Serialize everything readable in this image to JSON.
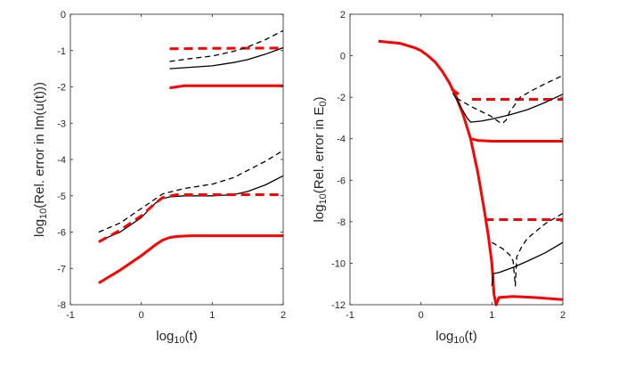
{
  "chart_data": [
    {
      "type": "line",
      "xlabel_parts": [
        "log",
        "10",
        "(t)"
      ],
      "ylabel_parts": [
        "log",
        "10",
        "(Rel. error in Im(u(t)))"
      ],
      "xlim": [
        -1,
        2
      ],
      "ylim": [
        -8,
        0
      ],
      "xticks": [
        -1,
        0,
        1,
        2
      ],
      "yticks": [
        -8,
        -7,
        -6,
        -5,
        -4,
        -3,
        -2,
        -1,
        0
      ],
      "grid": false,
      "series": [
        {
          "color": "#ff0000",
          "style": "dashed",
          "width": "thick",
          "x": [
            0.4,
            1.0,
            2.0
          ],
          "y": [
            -0.95,
            -0.94,
            -0.93
          ]
        },
        {
          "color": "#000000",
          "style": "dashed",
          "width": "thin",
          "x": [
            0.4,
            0.7,
            1.0,
            1.3,
            1.5,
            1.75,
            2.0
          ],
          "y": [
            -1.3,
            -1.22,
            -1.15,
            -1.02,
            -0.9,
            -0.7,
            -0.45
          ]
        },
        {
          "color": "#000000",
          "style": "solid",
          "width": "thin",
          "x": [
            0.4,
            0.7,
            1.0,
            1.3,
            1.5,
            1.75,
            2.0
          ],
          "y": [
            -1.5,
            -1.46,
            -1.42,
            -1.33,
            -1.25,
            -1.1,
            -0.92
          ]
        },
        {
          "color": "#ff0000",
          "style": "solid",
          "width": "thick",
          "x": [
            0.4,
            0.5,
            0.6,
            1.0,
            2.0
          ],
          "y": [
            -2.03,
            -2.0,
            -1.97,
            -1.97,
            -1.97
          ]
        },
        {
          "color": "#000000",
          "style": "dashed",
          "width": "thin",
          "x": [
            -0.6,
            -0.3,
            0.0,
            0.3,
            0.6,
            1.0,
            1.3,
            1.5,
            1.75,
            2.0
          ],
          "y": [
            -6.0,
            -5.75,
            -5.35,
            -4.95,
            -4.8,
            -4.68,
            -4.5,
            -4.3,
            -4.05,
            -3.75
          ]
        },
        {
          "color": "#000000",
          "style": "solid",
          "width": "thin",
          "x": [
            -0.6,
            -0.3,
            0.0,
            0.1,
            0.2,
            0.3,
            0.4,
            0.6,
            1.0,
            1.3,
            1.5,
            1.75,
            2.0
          ],
          "y": [
            -6.25,
            -6.0,
            -5.6,
            -5.4,
            -5.2,
            -5.08,
            -5.03,
            -5.0,
            -5.0,
            -4.97,
            -4.88,
            -4.7,
            -4.45
          ]
        },
        {
          "color": "#ff0000",
          "style": "dashed",
          "width": "thick",
          "x": [
            -0.6,
            -0.3,
            0.0,
            0.2,
            0.3,
            0.5,
            1.0,
            2.0
          ],
          "y": [
            -6.27,
            -5.95,
            -5.55,
            -5.2,
            -5.05,
            -4.97,
            -4.97,
            -4.97
          ]
        },
        {
          "color": "#ff0000",
          "style": "solid",
          "width": "thick",
          "x": [
            -0.6,
            -0.3,
            0.0,
            0.2,
            0.3,
            0.4,
            0.5,
            0.7,
            1.0,
            2.0
          ],
          "y": [
            -7.4,
            -7.05,
            -6.65,
            -6.35,
            -6.22,
            -6.15,
            -6.12,
            -6.1,
            -6.1,
            -6.1
          ]
        }
      ]
    },
    {
      "type": "line",
      "xlabel_parts": [
        "log",
        "10",
        "(t)"
      ],
      "ylabel_parts": [
        "log",
        "10",
        "(Rel. error in E",
        "0",
        ")"
      ],
      "xlim": [
        -1,
        2
      ],
      "ylim": [
        -12,
        2
      ],
      "xticks": [
        -1,
        0,
        1,
        2
      ],
      "yticks": [
        -12,
        -10,
        -8,
        -6,
        -4,
        -2,
        0,
        2
      ],
      "grid": false,
      "series": [
        {
          "color": "#ff0000",
          "style": "solid",
          "width": "thick",
          "x": [
            -0.6,
            -0.3,
            -0.1,
            0.0,
            0.1,
            0.2,
            0.3,
            0.4,
            0.5,
            0.6,
            0.7,
            0.8,
            0.9,
            0.95,
            1.0,
            1.03,
            1.06,
            1.1,
            1.3,
            1.6,
            2.0
          ],
          "y": [
            0.7,
            0.6,
            0.4,
            0.25,
            0.0,
            -0.3,
            -0.75,
            -1.3,
            -2.0,
            -2.9,
            -4.0,
            -5.6,
            -7.6,
            -8.7,
            -10.0,
            -11.5,
            -12.0,
            -11.65,
            -11.6,
            -11.65,
            -11.75
          ]
        },
        {
          "color": "#ff0000",
          "style": "solid",
          "width": "thick",
          "x": [
            0.7,
            0.8,
            1.0,
            1.5,
            2.0
          ],
          "y": [
            -4.0,
            -4.08,
            -4.12,
            -4.12,
            -4.12
          ]
        },
        {
          "color": "#ff0000",
          "style": "dashed",
          "width": "thick",
          "x": [
            0.43,
            0.55
          ],
          "y": [
            -1.6,
            -1.9
          ]
        },
        {
          "color": "#ff0000",
          "style": "dashed",
          "width": "thick",
          "x": [
            0.72,
            1.0,
            2.0
          ],
          "y": [
            -2.1,
            -2.1,
            -2.1
          ]
        },
        {
          "color": "#000000",
          "style": "solid",
          "width": "thin",
          "x": [
            0.45,
            0.55,
            0.65,
            0.7,
            0.85,
            1.0,
            1.25,
            1.5,
            1.75,
            2.0
          ],
          "y": [
            -1.8,
            -2.4,
            -3.0,
            -3.2,
            -3.15,
            -3.05,
            -2.85,
            -2.6,
            -2.25,
            -1.85
          ]
        },
        {
          "color": "#000000",
          "style": "dashed",
          "width": "thin",
          "x": [
            0.5,
            0.72,
            0.98,
            1.1,
            1.15,
            1.2,
            1.25,
            1.4,
            1.55,
            1.75,
            2.0
          ],
          "y": [
            -2.04,
            -2.47,
            -2.9,
            -3.19,
            -3.25,
            -3.1,
            -2.7,
            -2.0,
            -1.7,
            -1.35,
            -0.95
          ]
        },
        {
          "color": "#ff0000",
          "style": "dashed",
          "width": "thick",
          "x": [
            0.9,
            1.5,
            2.0
          ],
          "y": [
            -7.9,
            -7.9,
            -7.9
          ]
        },
        {
          "color": "#000000",
          "style": "dashed",
          "width": "thin",
          "x": [
            1.0,
            1.15,
            1.25,
            1.3,
            1.33,
            1.35,
            1.42,
            1.5,
            1.75,
            2.0
          ],
          "y": [
            -9.0,
            -9.3,
            -9.6,
            -9.9,
            -11.1,
            -9.7,
            -9.2,
            -8.8,
            -8.1,
            -7.6
          ]
        },
        {
          "color": "#000000",
          "style": "solid",
          "width": "thin",
          "x": [
            1.0,
            1.02,
            1.1,
            1.3,
            1.5,
            1.75,
            2.0
          ],
          "y": [
            -11.1,
            -10.5,
            -10.45,
            -10.2,
            -9.9,
            -9.5,
            -9.0
          ]
        }
      ]
    }
  ]
}
